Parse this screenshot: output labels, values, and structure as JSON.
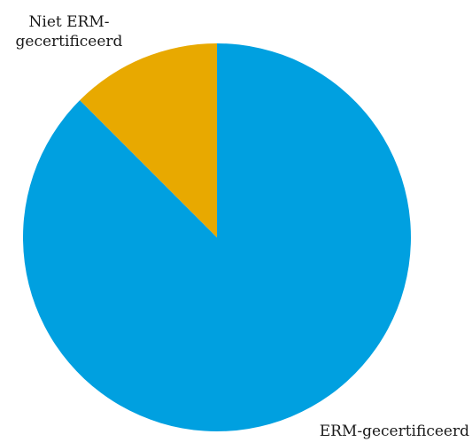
{
  "chart_data": {
    "type": "pie",
    "title": "",
    "slices": [
      {
        "label": "ERM-gecertificeerd",
        "value": 87.5,
        "color": "#00a0e0"
      },
      {
        "label_lines": [
          "Niet ERM-",
          "gecertificeerd"
        ],
        "value": 12.5,
        "color": "#e8a900"
      }
    ],
    "start_angle_deg": 0,
    "direction": "clockwise",
    "legend": "none"
  }
}
